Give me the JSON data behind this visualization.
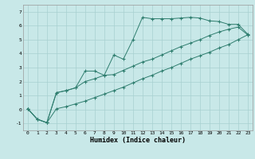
{
  "title": "",
  "xlabel": "Humidex (Indice chaleur)",
  "bg_color": "#c8e8e8",
  "line_color": "#2e7d6e",
  "grid_color": "#a8d0d0",
  "xlim": [
    -0.5,
    23.5
  ],
  "ylim": [
    -1.5,
    7.5
  ],
  "xticks": [
    0,
    1,
    2,
    3,
    4,
    5,
    6,
    7,
    8,
    9,
    10,
    11,
    12,
    13,
    14,
    15,
    16,
    17,
    18,
    19,
    20,
    21,
    22,
    23
  ],
  "yticks": [
    -1,
    0,
    1,
    2,
    3,
    4,
    5,
    6,
    7
  ],
  "series1_x": [
    0,
    1,
    2,
    3,
    4,
    5,
    6,
    7,
    8,
    9,
    10,
    11,
    12,
    13,
    14,
    15,
    16,
    17,
    18,
    19,
    20,
    21,
    22,
    23
  ],
  "series1_y": [
    0.05,
    -0.7,
    -0.95,
    1.2,
    1.35,
    1.55,
    2.75,
    2.75,
    2.45,
    3.9,
    3.6,
    5.0,
    6.6,
    6.5,
    6.5,
    6.5,
    6.55,
    6.6,
    6.55,
    6.35,
    6.3,
    6.1,
    6.1,
    5.4
  ],
  "series2_x": [
    0,
    1,
    2,
    3,
    4,
    5,
    6,
    7,
    8,
    9,
    10,
    11,
    12,
    13,
    14,
    15,
    16,
    17,
    18,
    19,
    20,
    21,
    22,
    23
  ],
  "series2_y": [
    0.05,
    -0.7,
    -0.95,
    1.2,
    1.35,
    1.55,
    2.0,
    2.2,
    2.45,
    2.5,
    2.8,
    3.1,
    3.4,
    3.6,
    3.9,
    4.2,
    4.5,
    4.75,
    5.0,
    5.3,
    5.55,
    5.75,
    5.9,
    5.35
  ],
  "series3_x": [
    0,
    1,
    2,
    3,
    4,
    5,
    6,
    7,
    8,
    9,
    10,
    11,
    12,
    13,
    14,
    15,
    16,
    17,
    18,
    19,
    20,
    21,
    22,
    23
  ],
  "series3_y": [
    0.05,
    -0.7,
    -0.95,
    0.05,
    0.2,
    0.4,
    0.6,
    0.85,
    1.1,
    1.35,
    1.6,
    1.9,
    2.2,
    2.45,
    2.75,
    3.0,
    3.3,
    3.6,
    3.85,
    4.1,
    4.4,
    4.65,
    5.0,
    5.35
  ]
}
